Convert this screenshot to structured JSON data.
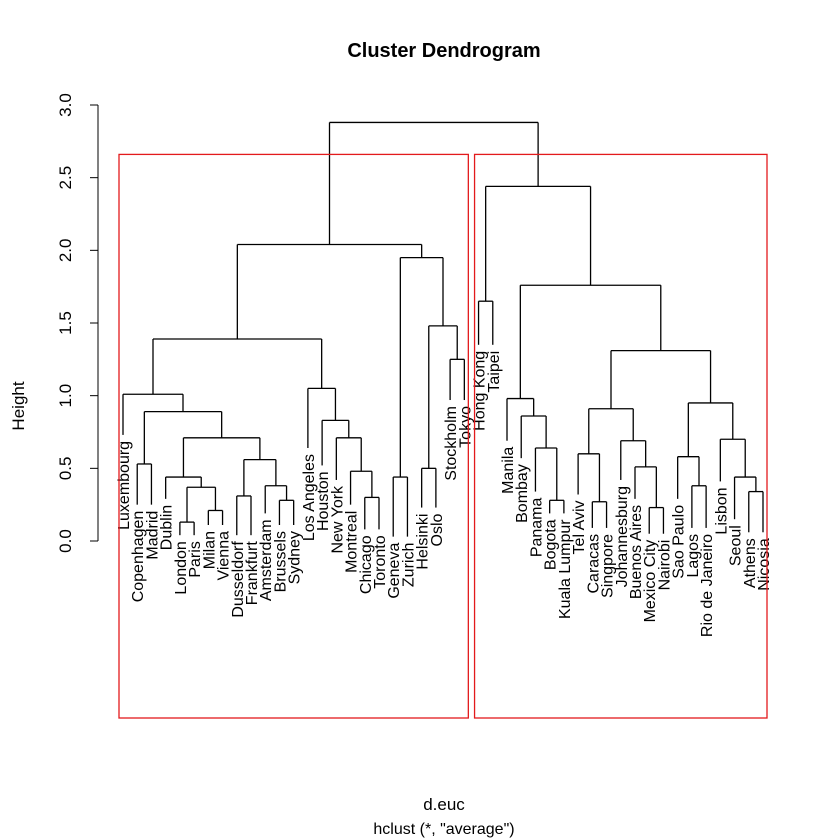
{
  "chart_data": {
    "type": "dendrogram",
    "title": "Cluster Dendrogram",
    "ylabel": "Height",
    "xlabel": "d.euc",
    "sublabel": "hclust (*, \"average\")",
    "ylim": [
      0,
      3.0
    ],
    "yticks": [
      "0.0",
      "0.5",
      "1.0",
      "1.5",
      "2.0",
      "2.5",
      "3.0"
    ],
    "yticks_values": [
      0,
      0.5,
      1.0,
      1.5,
      2.0,
      2.5,
      3.0
    ],
    "leaves": [
      {
        "label": "Luxembourg",
        "height": 0.73
      },
      {
        "label": "Copenhagen",
        "height": 0.25
      },
      {
        "label": "Madrid",
        "height": 0.25
      },
      {
        "label": "Dublin",
        "height": 0.29
      },
      {
        "label": "London",
        "height": 0.04
      },
      {
        "label": "Paris",
        "height": 0.04
      },
      {
        "label": "Milan",
        "height": 0.11
      },
      {
        "label": "Vienna",
        "height": 0.11
      },
      {
        "label": "Dusseldorf",
        "height": 0.04
      },
      {
        "label": "Frankfurt",
        "height": 0.04
      },
      {
        "label": "Amsterdam",
        "height": 0.19
      },
      {
        "label": "Brussels",
        "height": 0.11
      },
      {
        "label": "Sydney",
        "height": 0.11
      },
      {
        "label": "Los Angeles",
        "height": 0.64
      },
      {
        "label": "Houston",
        "height": 0.52
      },
      {
        "label": "New York",
        "height": 0.42
      },
      {
        "label": "Montreal",
        "height": 0.25
      },
      {
        "label": "Chicago",
        "height": 0.08
      },
      {
        "label": "Toronto",
        "height": 0.08
      },
      {
        "label": "Geneva",
        "height": 0.03
      },
      {
        "label": "Zurich",
        "height": 0.03
      },
      {
        "label": "Helsinki",
        "height": 0.23
      },
      {
        "label": "Oslo",
        "height": 0.23
      },
      {
        "label": "Stockholm",
        "height": 0.97
      },
      {
        "label": "Tokyo",
        "height": 0.97
      },
      {
        "label": "Hong Kong",
        "height": 1.35
      },
      {
        "label": "Taipei",
        "height": 1.35
      },
      {
        "label": "Manila",
        "height": 0.69
      },
      {
        "label": "Bombay",
        "height": 0.57
      },
      {
        "label": "Panama",
        "height": 0.34
      },
      {
        "label": "Bogota",
        "height": 0.19
      },
      {
        "label": "Kuala Lumpur",
        "height": 0.19
      },
      {
        "label": "Tel Aviv",
        "height": 0.32
      },
      {
        "label": "Caracas",
        "height": 0.09
      },
      {
        "label": "Singpore",
        "height": 0.09
      },
      {
        "label": "Johannesburg",
        "height": 0.42
      },
      {
        "label": "Buenos Aires",
        "height": 0.29
      },
      {
        "label": "Mexico City",
        "height": 0.05
      },
      {
        "label": "Nairobi",
        "height": 0.05
      },
      {
        "label": "Sao Paulo",
        "height": 0.29
      },
      {
        "label": "Lagos",
        "height": 0.09
      },
      {
        "label": "Rio de Janeiro",
        "height": 0.09
      },
      {
        "label": "Lisbon",
        "height": 0.41
      },
      {
        "label": "Seoul",
        "height": 0.15
      },
      {
        "label": "Athens",
        "height": 0.06
      },
      {
        "label": "Nicosia",
        "height": 0.06
      }
    ],
    "merges": [
      {
        "left": 4,
        "right": 5,
        "height": 0.13
      },
      {
        "left": 6,
        "right": 7,
        "height": 0.21
      },
      {
        "left": "m0",
        "right": "m1",
        "height": 0.37
      },
      {
        "left": 3,
        "right": "m2",
        "height": 0.44
      },
      {
        "left": 8,
        "right": 9,
        "height": 0.31
      },
      {
        "left": 11,
        "right": 12,
        "height": 0.28
      },
      {
        "left": 10,
        "right": "m5",
        "height": 0.38
      },
      {
        "left": "m4",
        "right": "m6",
        "height": 0.56
      },
      {
        "left": "m3",
        "right": "m7",
        "height": 0.71
      },
      {
        "left": 1,
        "right": 2,
        "height": 0.53
      },
      {
        "left": "m9",
        "right": "m8",
        "height": 0.89
      },
      {
        "left": 0,
        "right": "m10",
        "height": 1.01
      },
      {
        "left": 17,
        "right": 18,
        "height": 0.3
      },
      {
        "left": 16,
        "right": "m12",
        "height": 0.48
      },
      {
        "left": 15,
        "right": "m13",
        "height": 0.71
      },
      {
        "left": 14,
        "right": "m14",
        "height": 0.83
      },
      {
        "left": 13,
        "right": "m15",
        "height": 1.05
      },
      {
        "left": "m11",
        "right": "m16",
        "height": 1.39
      },
      {
        "left": 19,
        "right": 20,
        "height": 0.44
      },
      {
        "left": 21,
        "right": 22,
        "height": 0.5
      },
      {
        "left": 23,
        "right": 24,
        "height": 1.25
      },
      {
        "left": "m19",
        "right": "m20",
        "height": 1.48
      },
      {
        "left": "m18",
        "right": "m21",
        "height": 1.95
      },
      {
        "left": "m17",
        "right": "m22",
        "height": 2.04
      },
      {
        "left": 25,
        "right": 26,
        "height": 1.65
      },
      {
        "left": 30,
        "right": 31,
        "height": 0.28
      },
      {
        "left": 29,
        "right": "m25",
        "height": 0.64
      },
      {
        "left": 28,
        "right": "m26",
        "height": 0.86
      },
      {
        "left": 27,
        "right": "m27",
        "height": 0.98
      },
      {
        "left": 33,
        "right": 34,
        "height": 0.27
      },
      {
        "left": 32,
        "right": "m29",
        "height": 0.6
      },
      {
        "left": 37,
        "right": 38,
        "height": 0.23
      },
      {
        "left": 36,
        "right": "m31",
        "height": 0.51
      },
      {
        "left": 35,
        "right": "m32",
        "height": 0.69
      },
      {
        "left": "m30",
        "right": "m33",
        "height": 0.91
      },
      {
        "left": 40,
        "right": 41,
        "height": 0.38
      },
      {
        "left": 39,
        "right": "m35",
        "height": 0.58
      },
      {
        "left": 44,
        "right": 45,
        "height": 0.34
      },
      {
        "left": 43,
        "right": "m37",
        "height": 0.44
      },
      {
        "left": 42,
        "right": "m38",
        "height": 0.7
      },
      {
        "left": "m36",
        "right": "m39",
        "height": 0.95
      },
      {
        "left": "m34",
        "right": "m40",
        "height": 1.31
      },
      {
        "left": "m28",
        "right": "m41",
        "height": 1.76
      },
      {
        "left": "m24",
        "right": "m42",
        "height": 2.44
      },
      {
        "left": "m23",
        "right": "m43",
        "height": 2.88
      }
    ],
    "rect_clusters": [
      {
        "from": 0,
        "to": 24,
        "color": "#e31a1c"
      },
      {
        "from": 25,
        "to": 45,
        "color": "#e31a1c"
      }
    ],
    "line_color": "#000000"
  }
}
